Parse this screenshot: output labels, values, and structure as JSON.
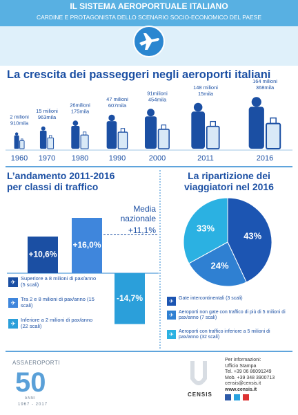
{
  "header": {
    "title": "IL SISTEMA AEROPORTUALE ITALIANO",
    "subtitle": "CARDINE E PROTAGONISTA DELLO SCENARIO SOCIO-ECONOMICO DEL PAESE"
  },
  "growth": {
    "title": "La crescita dei passeggeri negli aeroporti italiani",
    "items": [
      {
        "year": "1960",
        "lines": [
          "2 milioni",
          "910mila"
        ]
      },
      {
        "year": "1970",
        "lines": [
          "15 milioni",
          "963mila"
        ]
      },
      {
        "year": "1980",
        "lines": [
          "26milioni",
          "175mila"
        ]
      },
      {
        "year": "1990",
        "lines": [
          "47 milioni",
          "607mila"
        ]
      },
      {
        "year": "2000",
        "lines": [
          "91milioni",
          "454mila"
        ]
      },
      {
        "year": "2011",
        "lines": [
          "148 milioni",
          "15mila"
        ]
      },
      {
        "year": "2016",
        "lines": [
          "164 milioni",
          "368mila"
        ]
      }
    ]
  },
  "chart_data": [
    {
      "type": "bar",
      "title": "L’andamento 2011-2016 per classi di traffico",
      "categories": [
        "Superiore a 8 milioni di pax/anno (5 scali)",
        "Tra 2 e 8 milioni di pax/anno (15 scali)",
        "Inferiore a 2 milioni di pax/anno (22 scali)"
      ],
      "values": [
        10.6,
        16.0,
        -14.7
      ],
      "value_labels": [
        "+10,6%",
        "+16,0%",
        "-14,7%"
      ],
      "colors": [
        "#1b4fa3",
        "#3f86dc",
        "#2b9fda"
      ],
      "reference": {
        "label": "Media nazionale",
        "value": 11.1,
        "value_label": "+11,1%"
      }
    },
    {
      "type": "pie",
      "title": "La ripartizione dei viaggiatori nel 2016",
      "categories": [
        "Gate intercontinentali (3 scali)",
        "Aeroporti non gate con traffico di più di 5 milioni di pax/anno (7 scali)",
        "Aeroporti con traffico inferiore a 5 milioni di pax/anno (32 scali)"
      ],
      "values": [
        43,
        24,
        33
      ],
      "value_labels": [
        "43%",
        "24%",
        "33%"
      ],
      "colors": [
        "#1c55b2",
        "#2f80d2",
        "#2bb1e2"
      ]
    }
  ],
  "footer": {
    "assaeroporti": "ASSAEROPORTI",
    "number": "50",
    "anni": "ANNI",
    "years": "1967 - 2017",
    "censis": "CENSIS",
    "contacts": [
      "Per informazioni:",
      "Ufficio Stampa",
      "Tel. +39 06 86091249",
      "Mob. +39 348 3900713",
      "censis@censis.it",
      "www.censis.it"
    ]
  }
}
